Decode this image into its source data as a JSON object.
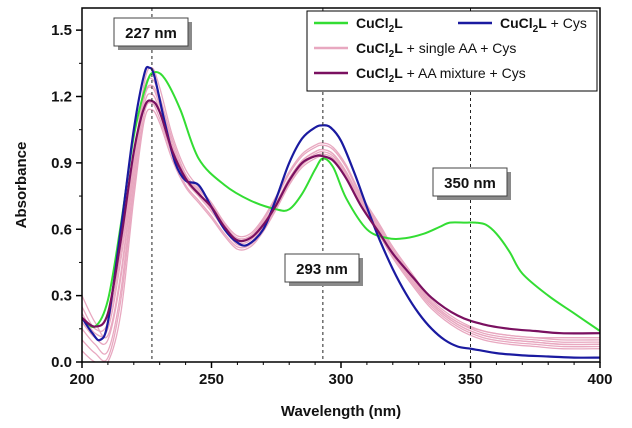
{
  "chart_data": {
    "type": "line",
    "xlabel": "Wavelength (nm)",
    "ylabel": "Absorbance",
    "xlim": [
      200,
      400
    ],
    "ylim": [
      0.0,
      1.6
    ],
    "xticks": [
      "200",
      "250",
      "300",
      "350",
      "400"
    ],
    "yticks": [
      "0.0",
      "0.3",
      "0.6",
      "0.9",
      "1.2",
      "1.5"
    ],
    "grid": false,
    "legend_position": "top-right",
    "legend": [
      {
        "key": "green",
        "parts": [
          {
            "t": "CuCl",
            "b": true
          },
          {
            "t": "2",
            "b": true,
            "sub": true
          },
          {
            "t": "L",
            "b": true
          }
        ]
      },
      {
        "key": "navy",
        "parts": [
          {
            "t": "CuCl",
            "b": true
          },
          {
            "t": "2",
            "b": true,
            "sub": true
          },
          {
            "t": "L",
            "b": true
          },
          {
            "t": " + Cys",
            "b": false
          }
        ]
      },
      {
        "key": "pink",
        "parts": [
          {
            "t": "CuCl",
            "b": true
          },
          {
            "t": "2",
            "b": true,
            "sub": true
          },
          {
            "t": "L",
            "b": true
          },
          {
            "t": " + single AA + Cys",
            "b": false
          }
        ]
      },
      {
        "key": "purple",
        "parts": [
          {
            "t": "CuCl",
            "b": true
          },
          {
            "t": "2",
            "b": true,
            "sub": true
          },
          {
            "t": "L",
            "b": true
          },
          {
            "t": " + AA mixture + Cys",
            "b": false
          }
        ]
      }
    ],
    "annotations": [
      {
        "label": "227 nm",
        "x": 227
      },
      {
        "label": "293 nm",
        "x": 293
      },
      {
        "label": "350 nm",
        "x": 350
      }
    ],
    "colors": {
      "green": "#33dd33",
      "navy": "#1a1aa0",
      "pink": "#e8a8c0",
      "purple": "#7a1060"
    },
    "series": [
      {
        "key": "green",
        "x": [
          200,
          205,
          210,
          215,
          220,
          225,
          228,
          232,
          238,
          245,
          255,
          265,
          275,
          280,
          285,
          290,
          293,
          297,
          302,
          310,
          318,
          325,
          332,
          338,
          342,
          348,
          352,
          356,
          360,
          365,
          370,
          380,
          390,
          400
        ],
        "y": [
          0.2,
          0.16,
          0.28,
          0.62,
          1.02,
          1.26,
          1.31,
          1.28,
          1.14,
          0.92,
          0.8,
          0.73,
          0.69,
          0.69,
          0.76,
          0.87,
          0.92,
          0.88,
          0.74,
          0.6,
          0.56,
          0.56,
          0.58,
          0.61,
          0.63,
          0.63,
          0.63,
          0.62,
          0.58,
          0.5,
          0.4,
          0.3,
          0.22,
          0.14
        ]
      },
      {
        "key": "navy",
        "x": [
          200,
          204,
          207,
          210,
          215,
          220,
          224,
          226,
          228,
          232,
          236,
          240,
          245,
          250,
          255,
          260,
          264,
          270,
          275,
          280,
          285,
          290,
          293,
          296,
          300,
          305,
          310,
          315,
          320,
          325,
          330,
          335,
          340,
          345,
          350,
          355,
          360,
          370,
          380,
          390,
          400
        ],
        "y": [
          0.2,
          0.13,
          0.1,
          0.18,
          0.6,
          1.05,
          1.3,
          1.33,
          1.29,
          1.08,
          0.9,
          0.82,
          0.8,
          0.7,
          0.6,
          0.54,
          0.53,
          0.6,
          0.74,
          0.9,
          1.01,
          1.06,
          1.07,
          1.06,
          1.0,
          0.86,
          0.7,
          0.55,
          0.42,
          0.31,
          0.22,
          0.15,
          0.1,
          0.07,
          0.06,
          0.05,
          0.04,
          0.03,
          0.025,
          0.02,
          0.02
        ]
      },
      {
        "key": "purple",
        "x": [
          200,
          205,
          210,
          215,
          220,
          224,
          227,
          230,
          235,
          240,
          245,
          250,
          255,
          260,
          265,
          270,
          275,
          280,
          285,
          290,
          293,
          297,
          302,
          308,
          315,
          320,
          328,
          335,
          345,
          355,
          365,
          375,
          385,
          400
        ],
        "y": [
          0.2,
          0.16,
          0.22,
          0.55,
          0.95,
          1.15,
          1.18,
          1.13,
          0.95,
          0.83,
          0.76,
          0.7,
          0.61,
          0.55,
          0.56,
          0.62,
          0.71,
          0.82,
          0.9,
          0.93,
          0.93,
          0.91,
          0.83,
          0.7,
          0.58,
          0.49,
          0.38,
          0.29,
          0.21,
          0.17,
          0.15,
          0.14,
          0.13,
          0.13
        ]
      },
      {
        "key": "pink",
        "x": [
          200,
          205,
          210,
          215,
          220,
          224,
          227,
          230,
          235,
          240,
          245,
          250,
          255,
          260,
          265,
          270,
          275,
          280,
          285,
          290,
          293,
          297,
          302,
          308,
          315,
          320,
          328,
          335,
          345,
          355,
          365,
          375,
          385,
          400
        ],
        "y": [
          0.3,
          0.18,
          0.12,
          0.4,
          0.88,
          1.23,
          1.28,
          1.2,
          1.0,
          0.85,
          0.78,
          0.71,
          0.62,
          0.56,
          0.57,
          0.64,
          0.74,
          0.85,
          0.93,
          0.97,
          0.98,
          0.96,
          0.88,
          0.74,
          0.61,
          0.51,
          0.38,
          0.27,
          0.18,
          0.13,
          0.11,
          0.1,
          0.09,
          0.09
        ]
      },
      {
        "key": "pink",
        "x": [
          200,
          205,
          210,
          215,
          220,
          224,
          227,
          230,
          235,
          240,
          245,
          250,
          255,
          260,
          265,
          270,
          275,
          280,
          285,
          290,
          293,
          297,
          302,
          308,
          315,
          320,
          328,
          335,
          345,
          355,
          365,
          375,
          385,
          400
        ],
        "y": [
          0.15,
          0.08,
          0.05,
          0.32,
          0.82,
          1.16,
          1.21,
          1.14,
          0.96,
          0.82,
          0.75,
          0.68,
          0.6,
          0.53,
          0.54,
          0.61,
          0.71,
          0.82,
          0.9,
          0.94,
          0.95,
          0.93,
          0.85,
          0.72,
          0.59,
          0.49,
          0.36,
          0.26,
          0.17,
          0.12,
          0.1,
          0.09,
          0.08,
          0.08
        ]
      },
      {
        "key": "pink",
        "x": [
          200,
          205,
          210,
          215,
          220,
          224,
          227,
          230,
          235,
          240,
          245,
          250,
          255,
          260,
          265,
          270,
          275,
          280,
          285,
          290,
          293,
          297,
          302,
          308,
          315,
          320,
          328,
          335,
          345,
          355,
          365,
          375,
          385,
          400
        ],
        "y": [
          0.25,
          0.15,
          0.18,
          0.5,
          0.92,
          1.2,
          1.25,
          1.18,
          0.98,
          0.84,
          0.77,
          0.69,
          0.61,
          0.55,
          0.56,
          0.63,
          0.72,
          0.83,
          0.91,
          0.95,
          0.96,
          0.94,
          0.86,
          0.73,
          0.6,
          0.5,
          0.37,
          0.27,
          0.18,
          0.14,
          0.12,
          0.11,
          0.1,
          0.1
        ]
      },
      {
        "key": "pink",
        "x": [
          200,
          205,
          210,
          215,
          220,
          224,
          227,
          230,
          235,
          240,
          245,
          250,
          255,
          260,
          265,
          270,
          275,
          280,
          285,
          290,
          293,
          297,
          302,
          308,
          315,
          320,
          328,
          335,
          345,
          355,
          365,
          375,
          385,
          400
        ],
        "y": [
          0.1,
          0.04,
          0.02,
          0.28,
          0.78,
          1.12,
          1.17,
          1.1,
          0.93,
          0.8,
          0.73,
          0.66,
          0.58,
          0.52,
          0.53,
          0.6,
          0.7,
          0.81,
          0.89,
          0.93,
          0.94,
          0.92,
          0.84,
          0.71,
          0.58,
          0.48,
          0.35,
          0.25,
          0.16,
          0.11,
          0.09,
          0.08,
          0.07,
          0.07
        ]
      },
      {
        "key": "pink",
        "x": [
          200,
          205,
          210,
          215,
          220,
          224,
          227,
          230,
          235,
          240,
          245,
          250,
          255,
          260,
          265,
          270,
          275,
          280,
          285,
          290,
          293,
          297,
          302,
          308,
          315,
          320,
          328,
          335,
          345,
          355,
          365,
          375,
          385,
          400
        ],
        "y": [
          0.22,
          0.13,
          0.15,
          0.46,
          0.9,
          1.26,
          1.33,
          1.24,
          1.02,
          0.87,
          0.79,
          0.72,
          0.63,
          0.57,
          0.58,
          0.65,
          0.75,
          0.86,
          0.94,
          0.98,
          0.99,
          0.97,
          0.89,
          0.75,
          0.62,
          0.52,
          0.39,
          0.28,
          0.19,
          0.14,
          0.12,
          0.11,
          0.11,
          0.11
        ]
      },
      {
        "key": "pink",
        "x": [
          200,
          205,
          210,
          215,
          220,
          224,
          227,
          230,
          235,
          240,
          245,
          250,
          255,
          260,
          265,
          270,
          275,
          280,
          285,
          290,
          293,
          297,
          302,
          308,
          315,
          320,
          328,
          335,
          345,
          355,
          365,
          375,
          385,
          400
        ],
        "y": [
          0.18,
          0.11,
          0.1,
          0.38,
          0.86,
          1.19,
          1.24,
          1.16,
          0.97,
          0.83,
          0.76,
          0.69,
          0.6,
          0.54,
          0.55,
          0.62,
          0.72,
          0.83,
          0.91,
          0.95,
          0.96,
          0.94,
          0.86,
          0.72,
          0.59,
          0.49,
          0.36,
          0.26,
          0.17,
          0.12,
          0.1,
          0.09,
          0.08,
          0.08
        ]
      },
      {
        "key": "pink",
        "x": [
          200,
          205,
          210,
          215,
          220,
          224,
          227,
          230,
          235,
          240,
          245,
          250,
          255,
          260,
          265,
          270,
          275,
          280,
          285,
          290,
          293,
          297,
          302,
          308,
          315,
          320,
          328,
          335,
          345,
          355,
          365,
          375,
          385,
          400
        ],
        "y": [
          0.05,
          0.0,
          0.0,
          0.22,
          0.74,
          1.09,
          1.14,
          1.08,
          0.91,
          0.79,
          0.72,
          0.65,
          0.57,
          0.51,
          0.52,
          0.59,
          0.69,
          0.8,
          0.88,
          0.92,
          0.93,
          0.91,
          0.83,
          0.7,
          0.57,
          0.47,
          0.34,
          0.24,
          0.15,
          0.1,
          0.08,
          0.07,
          0.06,
          0.06
        ]
      }
    ]
  }
}
